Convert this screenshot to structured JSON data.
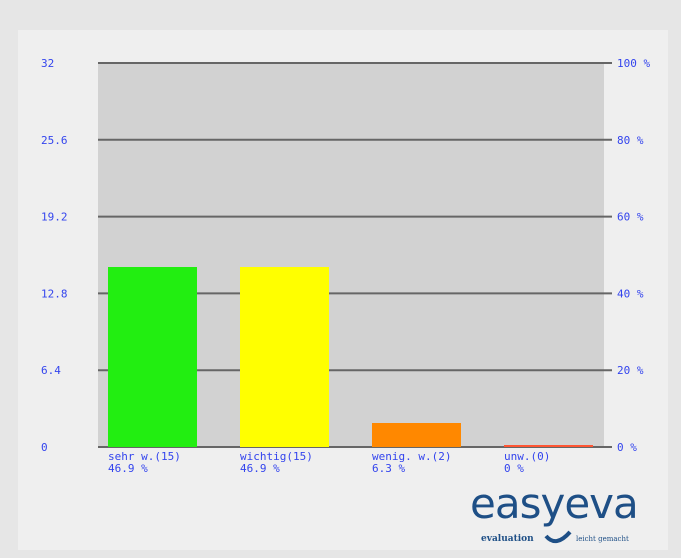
{
  "chart_data": {
    "type": "bar",
    "categories": [
      "sehr w.(15)",
      "wichtig(15)",
      "wenig. w.(2)",
      "unw.(0)"
    ],
    "percent_labels": [
      "46.9 %",
      "46.9 %",
      "6.3 %",
      "0 %"
    ],
    "values": [
      15,
      15,
      2,
      0
    ],
    "bar_colors": [
      "#22ee11",
      "#ffff00",
      "#ff8800",
      "#ff5533"
    ],
    "ylim": [
      0,
      32
    ],
    "yticks": [
      "0",
      "6.4",
      "12.8",
      "19.2",
      "25.6",
      "32"
    ],
    "ytick_values": [
      0,
      6.4,
      12.8,
      19.2,
      25.6,
      32
    ],
    "y2ticks": [
      "0 %",
      "20 %",
      "40 %",
      "60 %",
      "80 %",
      "100 %"
    ],
    "grid": true,
    "label_color": "#3344ee",
    "plot_bg": "#d2d2d2",
    "gridline_color": "#666666"
  },
  "logo": {
    "word": "easyeva",
    "tagline_left": "evaluation",
    "tagline_right": "leicht gemacht",
    "color": "#1e4f86"
  }
}
